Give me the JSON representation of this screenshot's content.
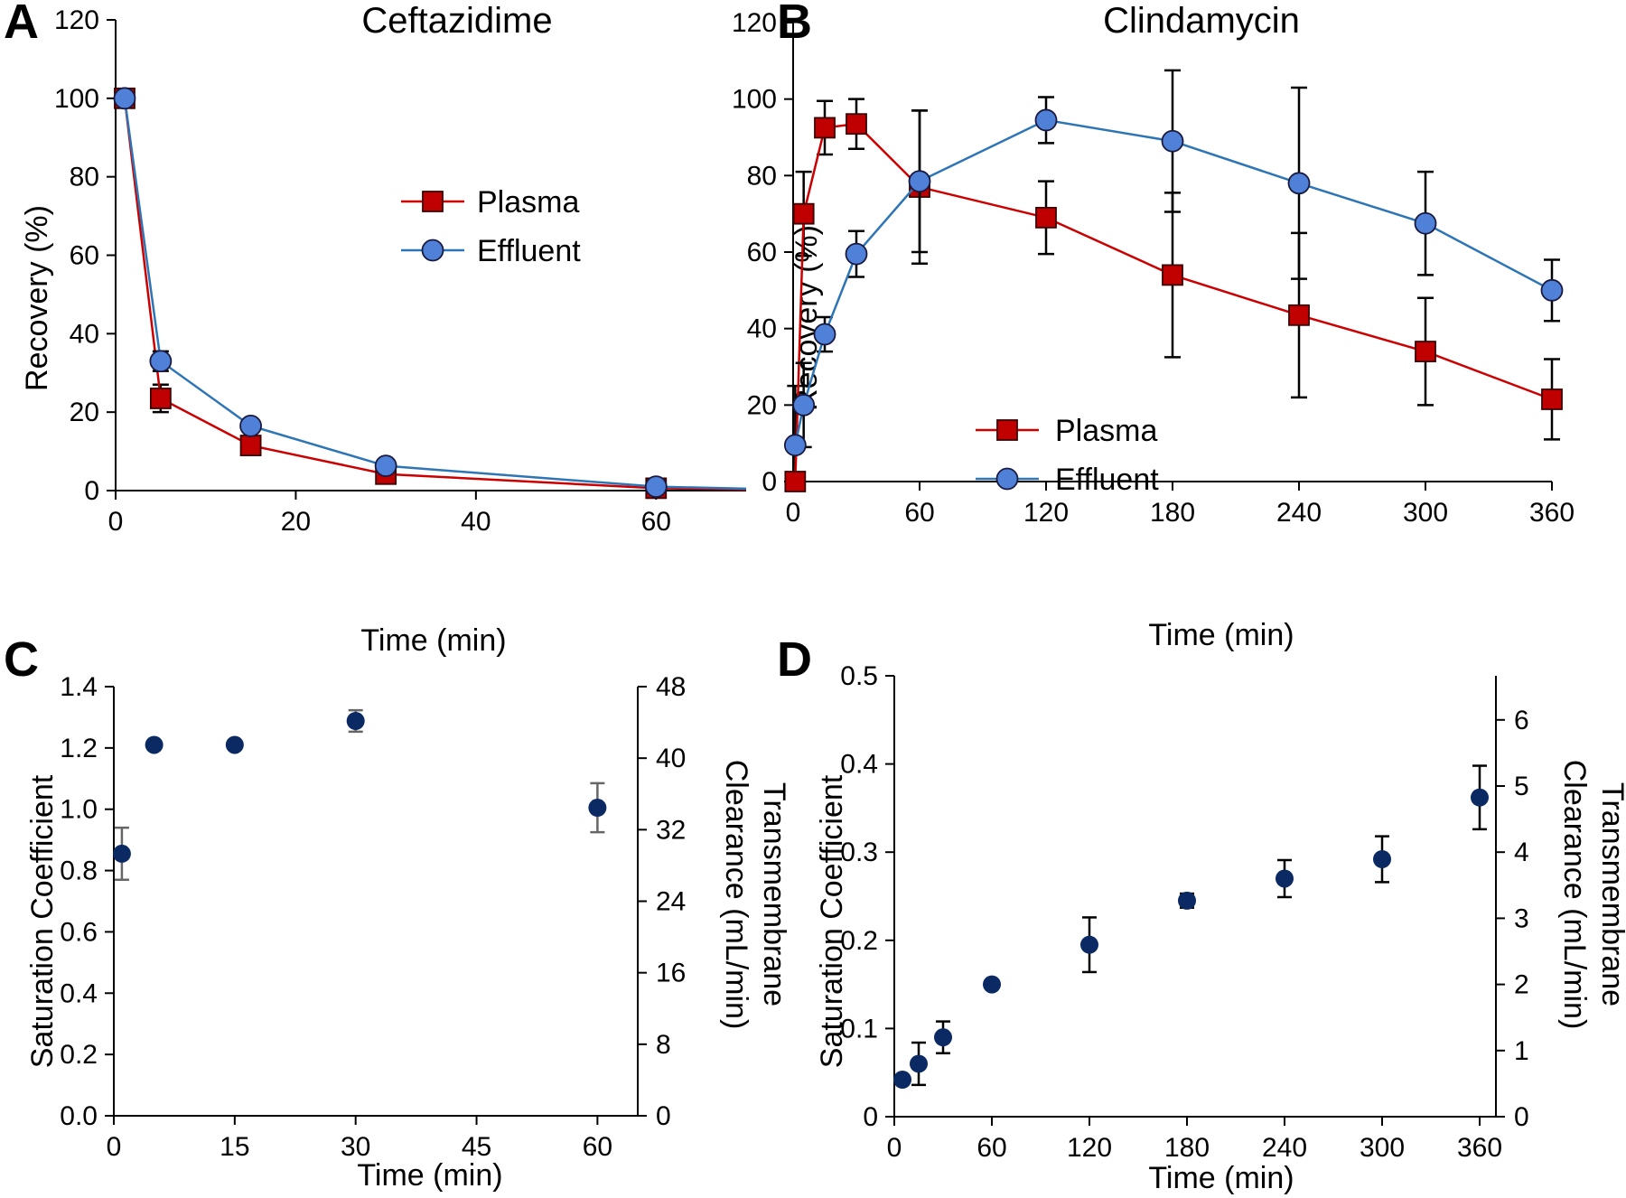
{
  "colors": {
    "plasma": "#cc0000",
    "plasma_fill": "#c00000",
    "effluent": "#2e75b6",
    "effluent_fill": "#4f81d9",
    "sat": "#0b2a63",
    "err_gray": "#666666",
    "axis": "#000000"
  },
  "chart_data": [
    {
      "id": "A",
      "type": "line",
      "letter": "A",
      "title": "Ceftazidime",
      "xlabel": "Time (min)",
      "ylabel": "Recovery (%)",
      "xlim": [
        0,
        70
      ],
      "ylim": [
        0,
        120
      ],
      "xticks": [
        0,
        20,
        40,
        60
      ],
      "yticks": [
        0,
        20,
        40,
        60,
        80,
        100,
        120
      ],
      "legend": "upper-middle-right",
      "series": [
        {
          "name": "Plasma",
          "marker": "square",
          "x": [
            1,
            5,
            15,
            30,
            60,
            70
          ],
          "y": [
            100,
            23.5,
            11.5,
            4.2,
            0.6,
            0.3
          ],
          "err": [
            0,
            3.5,
            0,
            0,
            0,
            0
          ],
          "markers": [
            true,
            true,
            true,
            true,
            true,
            false
          ]
        },
        {
          "name": "Effluent",
          "marker": "circle",
          "x": [
            1,
            5,
            15,
            30,
            60,
            70
          ],
          "y": [
            100,
            33,
            16.5,
            6.3,
            1.0,
            0.5
          ],
          "err": [
            0,
            2.5,
            0,
            0,
            0,
            0
          ],
          "markers": [
            true,
            true,
            true,
            true,
            true,
            false
          ]
        }
      ]
    },
    {
      "id": "B",
      "type": "line",
      "letter": "B",
      "title": "Clindamycin",
      "xlabel": "Time (min)",
      "ylabel": "Recovery (%)",
      "xlim": [
        0,
        360
      ],
      "ylim": [
        0,
        120
      ],
      "xticks": [
        0,
        60,
        120,
        180,
        240,
        300,
        360
      ],
      "yticks": [
        0,
        20,
        40,
        60,
        80,
        100,
        120
      ],
      "legend": "lower-left",
      "series": [
        {
          "name": "Plasma",
          "marker": "square",
          "x": [
            1,
            5,
            15,
            30,
            60,
            120,
            180,
            240,
            300,
            360
          ],
          "y": [
            0,
            70,
            92.5,
            93.5,
            77,
            69,
            54,
            43.5,
            34,
            21.5
          ],
          "err": [
            25,
            11,
            7,
            6.5,
            20,
            9.5,
            21.5,
            21.5,
            14,
            10.5
          ]
        },
        {
          "name": "Effluent",
          "marker": "circle",
          "x": [
            1,
            5,
            15,
            30,
            60,
            120,
            180,
            240,
            300,
            360
          ],
          "y": [
            9.5,
            20,
            38.5,
            59.5,
            78.5,
            94.5,
            89,
            78,
            67.5,
            50
          ],
          "err": [
            0,
            11,
            4.5,
            6,
            18.5,
            6,
            18.5,
            25,
            13.5,
            8
          ]
        }
      ]
    },
    {
      "id": "C",
      "type": "scatter",
      "letter": "C",
      "xlabel": "Time (min)",
      "ylabel": "Saturation Coefficient",
      "y2label_lines": [
        "Transmembrane",
        "Clearance (mL/min)"
      ],
      "xlim": [
        0,
        65
      ],
      "ylim": [
        0,
        1.4
      ],
      "y2lim": [
        0,
        48
      ],
      "xticks": [
        0,
        15,
        30,
        45,
        60
      ],
      "yticks": [
        0.0,
        0.2,
        0.4,
        0.6,
        0.8,
        1.0,
        1.2,
        1.4
      ],
      "ytick_labels": [
        "0.0",
        "0.2",
        "0.4",
        "0.6",
        "0.8",
        "1.0",
        "1.2",
        "1.4"
      ],
      "y2ticks": [
        0,
        8,
        16,
        24,
        32,
        40,
        48
      ],
      "series": [
        {
          "name": "Saturation Coefficient",
          "x": [
            1,
            5,
            15,
            30,
            60
          ],
          "y": [
            0.855,
            1.21,
            1.21,
            1.288,
            1.005
          ],
          "err": [
            0.085,
            0,
            0,
            0.035,
            0.08
          ]
        }
      ]
    },
    {
      "id": "D",
      "type": "scatter",
      "letter": "D",
      "xlabel": "Time (min)",
      "ylabel": "Saturation Coefficient",
      "y2label_lines": [
        "Transmembrane",
        "Clearance (mL/min)"
      ],
      "xlim": [
        0,
        370
      ],
      "ylim": [
        0,
        0.5
      ],
      "y2lim": [
        0,
        6.66667
      ],
      "xticks": [
        0,
        60,
        120,
        180,
        240,
        300,
        360
      ],
      "yticks": [
        0,
        0.1,
        0.2,
        0.3,
        0.4,
        0.5
      ],
      "ytick_labels": [
        "0",
        "0.1",
        "0.2",
        "0.3",
        "0.4",
        "0.5"
      ],
      "y2ticks": [
        0,
        1,
        2,
        3,
        4,
        5,
        6
      ],
      "series": [
        {
          "name": "Saturation Coefficient",
          "x": [
            5,
            15,
            30,
            60,
            120,
            180,
            240,
            300,
            360
          ],
          "y": [
            0.042,
            0.06,
            0.09,
            0.15,
            0.195,
            0.245,
            0.27,
            0.292,
            0.362
          ],
          "err": [
            0,
            0.024,
            0.018,
            0,
            0.031,
            0.008,
            0.021,
            0.026,
            0.036
          ]
        }
      ]
    }
  ]
}
